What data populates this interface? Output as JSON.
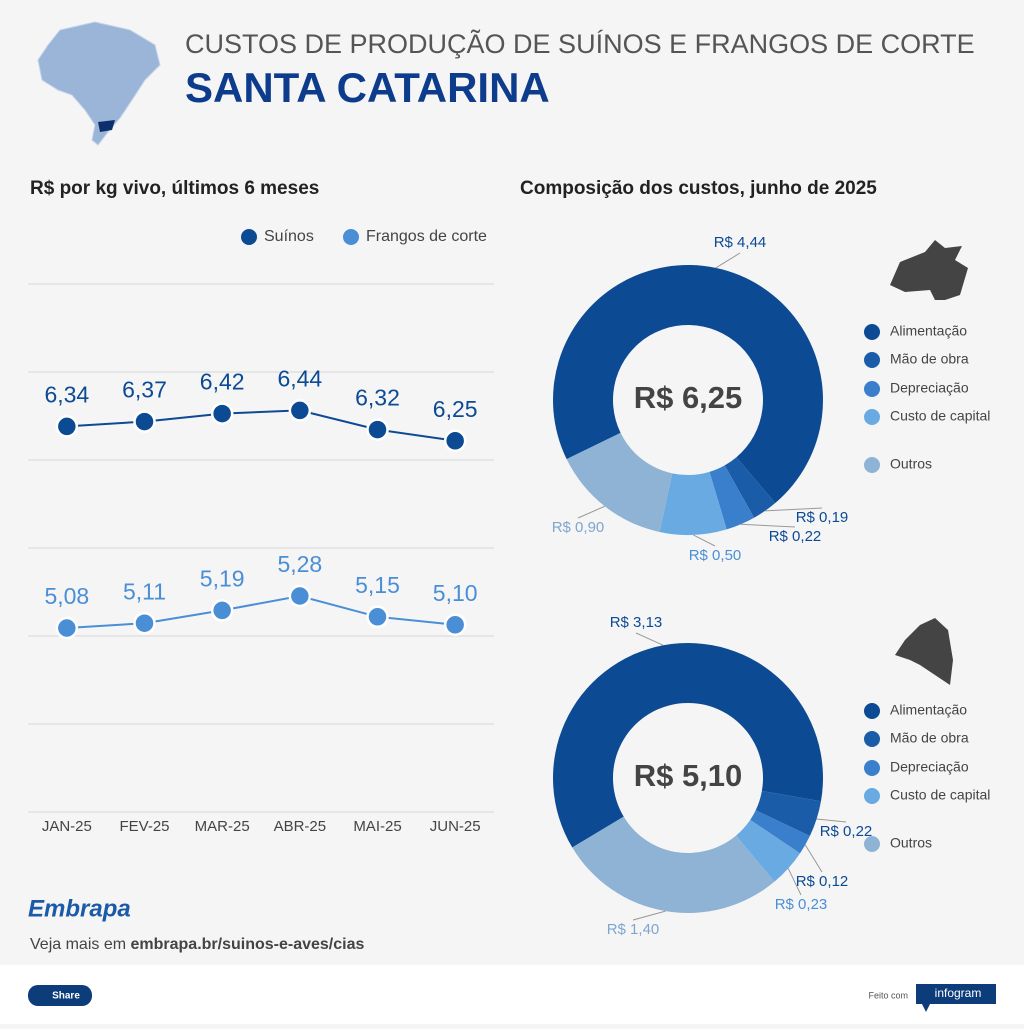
{
  "header": {
    "title": "CUSTOS DE PRODUÇÃO DE SUÍNOS E FRANGOS DE CORTE",
    "subtitle": "SANTA CATARINA"
  },
  "chart_data": [
    {
      "type": "line",
      "title": "R$ por kg vivo, últimos 6 meses",
      "categories": [
        "JAN-25",
        "FEV-25",
        "MAR-25",
        "ABR-25",
        "MAI-25",
        "JUN-25"
      ],
      "series": [
        {
          "name": "Suínos",
          "color": "#0d4a94",
          "values": [
            6.34,
            6.37,
            6.42,
            6.44,
            6.32,
            6.25
          ],
          "value_labels": [
            "6,34",
            "6,37",
            "6,42",
            "6,44",
            "6,32",
            "6,25"
          ]
        },
        {
          "name": "Frangos de corte",
          "color": "#4a8fd6",
          "values": [
            5.08,
            5.11,
            5.19,
            5.28,
            5.15,
            5.1
          ],
          "value_labels": [
            "5,08",
            "5,11",
            "5,19",
            "5,28",
            "5,15",
            "5,10"
          ]
        }
      ],
      "ylim": [
        3.93,
        7.23
      ],
      "yticks": [
        3.93,
        4.48,
        5.03,
        5.58,
        6.13,
        6.68,
        7.23
      ],
      "grid": true
    },
    {
      "type": "donut",
      "title": "Composição dos custos, junho de 2025",
      "center_label": "R$ 6,25",
      "categories": [
        "Alimentação",
        "Mão de obra",
        "Depreciação",
        "Custo de capital",
        "Outros"
      ],
      "values": [
        4.44,
        0.19,
        0.22,
        0.5,
        0.9
      ],
      "value_labels": [
        "R$ 4,44",
        "R$ 0,19",
        "R$ 0,22",
        "R$ 0,50",
        "R$ 0,90"
      ],
      "colors": [
        "#0c4a93",
        "#1a5ca8",
        "#3a7fcb",
        "#6aaae3",
        "#8fb3d5"
      ]
    },
    {
      "type": "donut",
      "center_label": "R$ 5,10",
      "categories": [
        "Alimentação",
        "Mão de obra",
        "Depreciação",
        "Custo de capital",
        "Outros"
      ],
      "values": [
        3.13,
        0.22,
        0.12,
        0.23,
        1.4
      ],
      "value_labels": [
        "R$ 3,13",
        "R$ 0,22",
        "R$ 0,12",
        "R$ 0,23",
        "R$ 1,40"
      ],
      "colors": [
        "#0c4a93",
        "#1a5ca8",
        "#3a7fcb",
        "#6aaae3",
        "#8fb3d5"
      ]
    }
  ],
  "footer": {
    "logo": "Embrapa",
    "note": "Veja mais em",
    "link": "embrapa.br/suinos-e-aves/cias",
    "share": "Share",
    "made_with": "Feito com",
    "brand": "infogram"
  }
}
